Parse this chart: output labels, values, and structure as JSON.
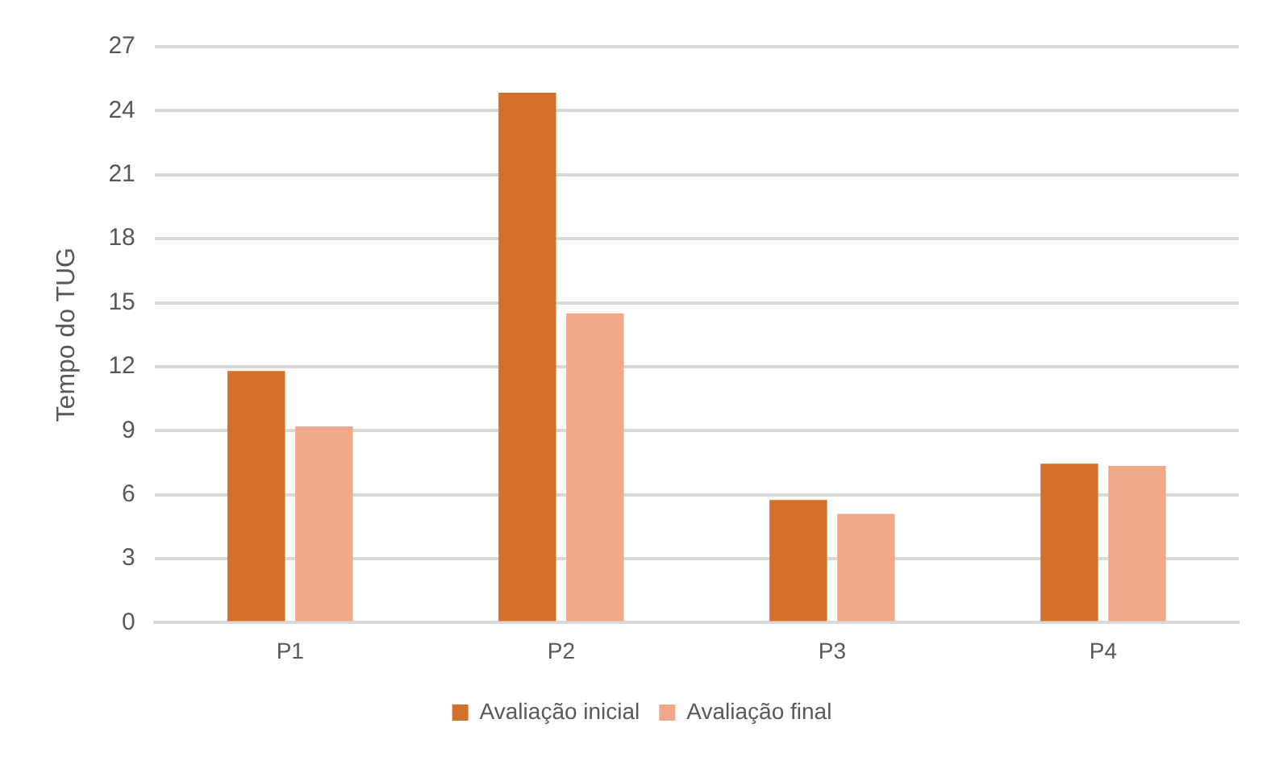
{
  "chart_data": {
    "type": "bar",
    "ylabel": "Tempo do TUG",
    "categories": [
      "P1",
      "P2",
      "P3",
      "P4"
    ],
    "series": [
      {
        "name": "Avaliação inicial",
        "color": "#d2702c",
        "values": [
          11.8,
          24.85,
          5.75,
          7.45
        ]
      },
      {
        "name": "Avaliação final",
        "color": "#f0a889",
        "values": [
          9.2,
          14.5,
          5.1,
          7.35
        ]
      }
    ],
    "ylim": [
      0,
      27
    ],
    "yticks": [
      0,
      3,
      6,
      9,
      12,
      15,
      18,
      21,
      24,
      27
    ],
    "grid": "y",
    "legend": "bottom"
  }
}
